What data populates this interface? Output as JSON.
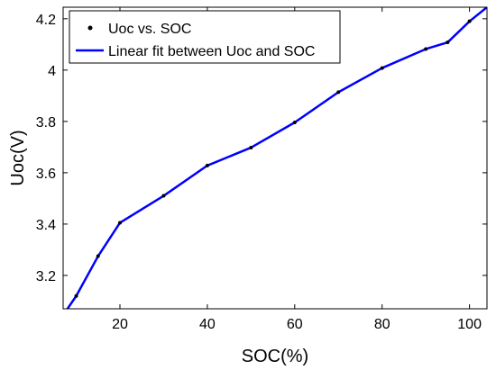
{
  "chart_data": {
    "type": "line",
    "xlabel": "SOC(%)",
    "ylabel": "Uoc(V)",
    "xlim": [
      7,
      104
    ],
    "ylim": [
      3.07,
      4.245
    ],
    "xticks": [
      20,
      40,
      60,
      80,
      100
    ],
    "yticks": [
      3.2,
      3.4,
      3.6,
      3.8,
      4,
      4.2
    ],
    "xtick_labels": [
      "20",
      "40",
      "60",
      "80",
      "100"
    ],
    "ytick_labels": [
      "3.2",
      "3.4",
      "3.6",
      "3.8",
      "4",
      "4.2"
    ],
    "grid": false,
    "legend_position": "top-left",
    "series": [
      {
        "name": "Uoc vs. SOC",
        "style": "markers",
        "color": "#000000",
        "x": [
          10,
          15,
          20,
          30,
          40,
          50,
          60,
          70,
          80,
          90,
          95,
          100
        ],
        "y": [
          3.12,
          3.275,
          3.405,
          3.51,
          3.628,
          3.698,
          3.796,
          3.914,
          4.008,
          4.082,
          4.108,
          4.19
        ]
      },
      {
        "name": "Linear fit between Uoc and SOC",
        "style": "line",
        "color": "#0000ff",
        "x": [
          8,
          10,
          15,
          20,
          30,
          40,
          50,
          60,
          70,
          80,
          90,
          95,
          100,
          104
        ],
        "y": [
          3.07,
          3.12,
          3.275,
          3.405,
          3.51,
          3.628,
          3.698,
          3.796,
          3.914,
          4.008,
          4.082,
          4.108,
          4.19,
          4.245
        ]
      }
    ]
  }
}
